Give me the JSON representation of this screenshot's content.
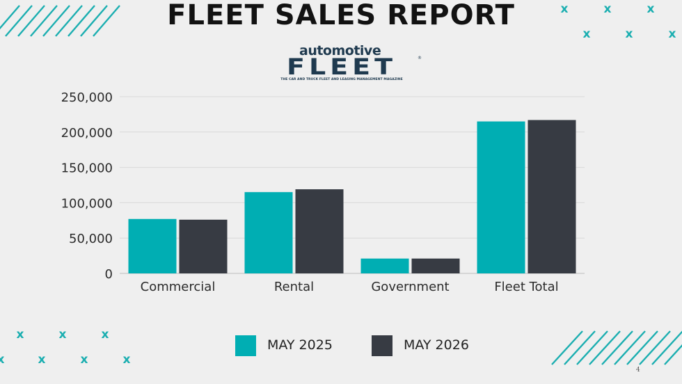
{
  "header": {
    "title": "FLEET SALES REPORT"
  },
  "logo": {
    "top_text": "automotive",
    "main_text": "FLEET",
    "registered_mark": "®",
    "tagline": "THE CAR AND TRUCK FLEET AND LEASING MANAGEMENT MAGAZINE"
  },
  "colors": {
    "series_1": "#00aeb3",
    "series_2": "#373b43",
    "accent": "#1aaeb0",
    "grid": "#d9d9d9"
  },
  "chart_data": {
    "type": "bar",
    "title": "",
    "xlabel": "",
    "ylabel": "",
    "categories": [
      "Commercial",
      "Rental",
      "Government",
      "Fleet Total"
    ],
    "series": [
      {
        "name": "MAY 2025",
        "values": [
          77000,
          115000,
          21000,
          215000
        ]
      },
      {
        "name": "MAY 2026",
        "values": [
          76000,
          119000,
          21000,
          217000
        ]
      }
    ],
    "ylim": [
      0,
      250000
    ],
    "yticks": [
      0,
      50000,
      100000,
      150000,
      200000,
      250000
    ],
    "ytick_labels": [
      "0",
      "50,000",
      "100,000",
      "150,000",
      "200,000",
      "250,000"
    ],
    "grid": true,
    "legend_position": "bottom"
  },
  "legend": {
    "items": [
      "MAY 2025",
      "MAY 2026"
    ]
  },
  "footer": {
    "page_number": "4"
  }
}
